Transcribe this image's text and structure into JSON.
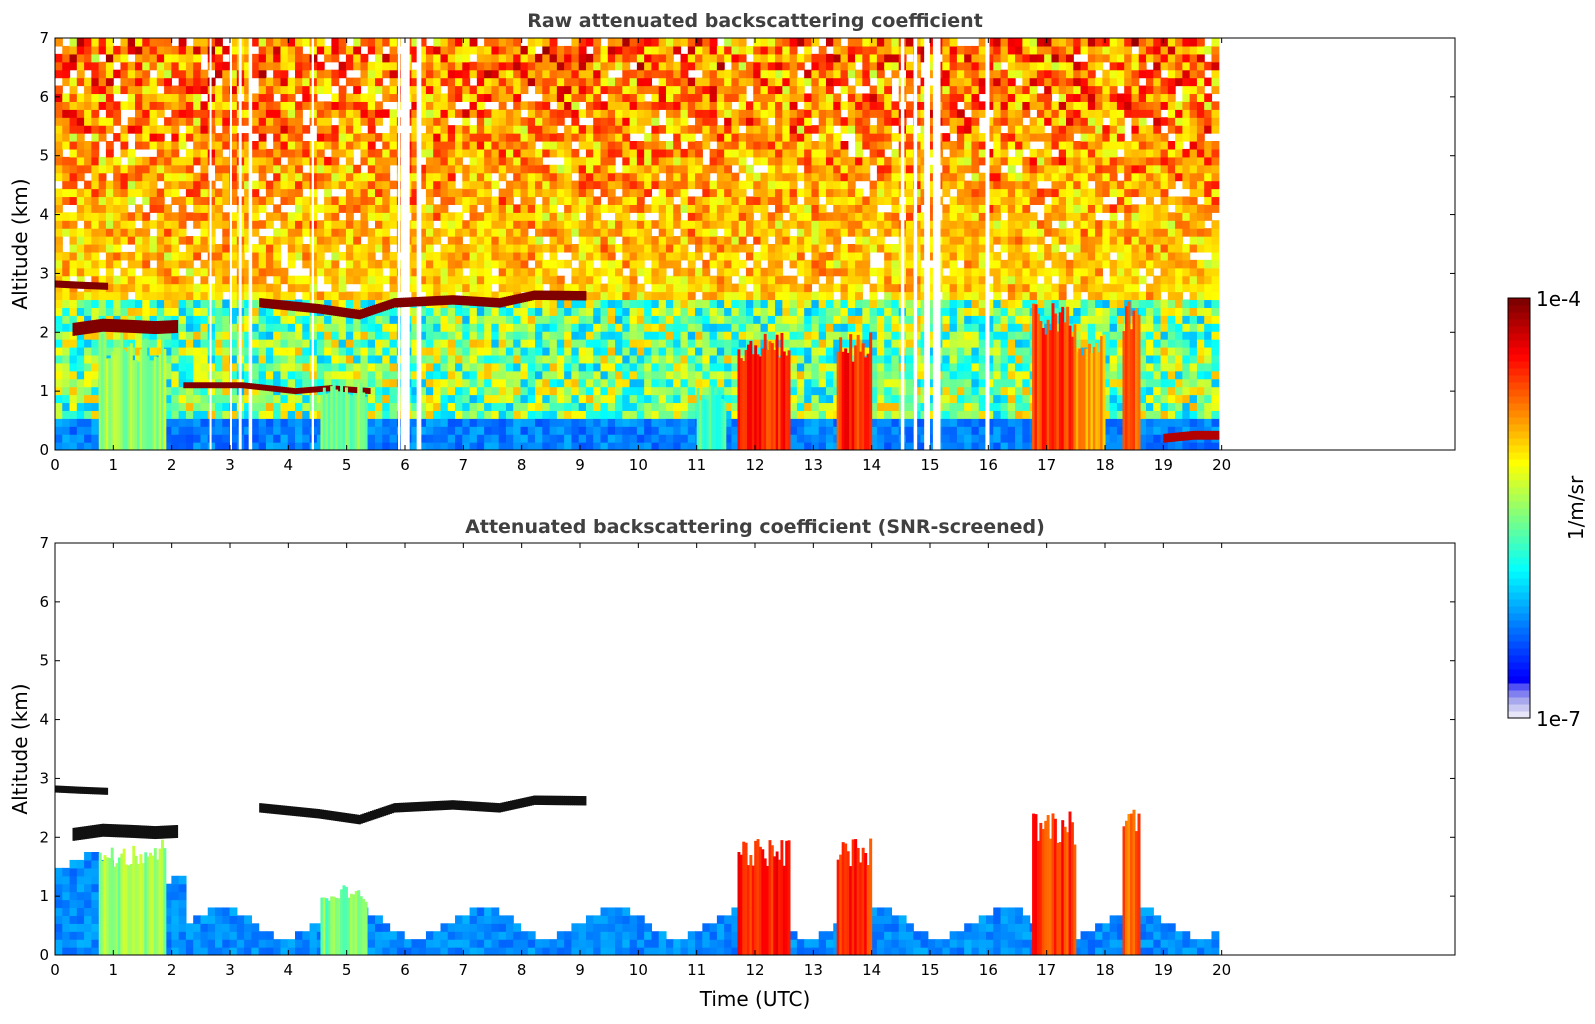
{
  "chart_data": [
    {
      "type": "heatmap",
      "title": "Raw attenuated backscattering coefficient",
      "xlabel": "",
      "ylabel": "Altitude (km)",
      "xlim": [
        0,
        24
      ],
      "ylim": [
        0,
        7
      ],
      "xticks": [
        "0",
        "1",
        "2",
        "3",
        "4",
        "5",
        "6",
        "7",
        "8",
        "9",
        "10",
        "11",
        "12",
        "13",
        "14",
        "15",
        "16",
        "17",
        "18",
        "19",
        "20"
      ],
      "yticks": [
        "0",
        "1",
        "2",
        "3",
        "4",
        "5",
        "6",
        "7"
      ],
      "data_end_time": 19.95,
      "noise_region": {
        "low_altitude_level": 0.2,
        "mid_altitude_level": 0.55,
        "upper_altitude_level": 0.8
      },
      "gaps": [
        [
          2.65,
          2.68
        ],
        [
          3.0,
          3.03
        ],
        [
          3.15,
          3.2
        ],
        [
          3.32,
          3.38
        ],
        [
          4.4,
          4.44
        ],
        [
          5.88,
          5.92
        ],
        [
          5.93,
          6.08
        ],
        [
          6.2,
          6.28
        ],
        [
          14.5,
          14.56
        ],
        [
          14.72,
          14.78
        ],
        [
          14.9,
          15.0
        ],
        [
          15.05,
          15.18
        ],
        [
          15.95,
          16.02
        ]
      ],
      "features": [
        {
          "kind": "layer",
          "level": 1.0,
          "points": [
            [
              0,
              2.82
            ],
            [
              0.4,
              2.8
            ],
            [
              0.9,
              2.78
            ]
          ],
          "thickness": 0.12
        },
        {
          "kind": "layer",
          "level": 1.0,
          "points": [
            [
              0.3,
              2.05
            ],
            [
              0.8,
              2.12
            ],
            [
              1.3,
              2.1
            ],
            [
              1.7,
              2.08
            ],
            [
              2.1,
              2.1
            ]
          ],
          "thickness": 0.22
        },
        {
          "kind": "layer",
          "level": 1.0,
          "points": [
            [
              3.5,
              2.5
            ],
            [
              4.5,
              2.4
            ],
            [
              5.2,
              2.3
            ],
            [
              5.8,
              2.5
            ],
            [
              6.8,
              2.55
            ],
            [
              7.6,
              2.5
            ],
            [
              8.2,
              2.63
            ],
            [
              9.1,
              2.62
            ]
          ],
          "thickness": 0.16
        },
        {
          "kind": "layer",
          "level": 1.0,
          "points": [
            [
              2.2,
              1.1
            ],
            [
              3.2,
              1.1
            ],
            [
              4.1,
              1.0
            ],
            [
              4.7,
              1.05
            ],
            [
              5.4,
              1.0
            ]
          ],
          "thickness": 0.1
        },
        {
          "kind": "column",
          "level": 0.58,
          "x": [
            0.75,
            1.9
          ],
          "alt": [
            0,
            2.0
          ]
        },
        {
          "kind": "column",
          "level": 0.55,
          "x": [
            4.55,
            5.35
          ],
          "alt": [
            0,
            1.2
          ]
        },
        {
          "kind": "column",
          "level": 0.5,
          "x": [
            11.0,
            11.5
          ],
          "alt": [
            0,
            1.1
          ]
        },
        {
          "kind": "column",
          "level": 0.9,
          "x": [
            11.7,
            12.6
          ],
          "alt": [
            0,
            2.0
          ]
        },
        {
          "kind": "column",
          "level": 0.9,
          "x": [
            13.4,
            14.0
          ],
          "alt": [
            0,
            2.0
          ]
        },
        {
          "kind": "column",
          "level": 0.88,
          "x": [
            16.75,
            17.5
          ],
          "alt": [
            0,
            2.5
          ]
        },
        {
          "kind": "column",
          "level": 0.78,
          "x": [
            17.5,
            18.0
          ],
          "alt": [
            0,
            2.0
          ]
        },
        {
          "kind": "column",
          "level": 0.85,
          "x": [
            18.3,
            18.6
          ],
          "alt": [
            0,
            2.6
          ]
        },
        {
          "kind": "layer",
          "level": 0.95,
          "points": [
            [
              19.0,
              0.2
            ],
            [
              19.5,
              0.25
            ],
            [
              19.95,
              0.25
            ]
          ],
          "thickness": 0.15
        }
      ]
    },
    {
      "type": "heatmap",
      "title": "Attenuated backscattering coefficient (SNR-screened)",
      "xlabel": "Time (UTC)",
      "ylabel": "Altitude (km)",
      "xlim": [
        0,
        24
      ],
      "ylim": [
        0,
        7
      ],
      "xticks": [
        "0",
        "1",
        "2",
        "3",
        "4",
        "5",
        "6",
        "7",
        "8",
        "9",
        "10",
        "11",
        "12",
        "13",
        "14",
        "15",
        "16",
        "17",
        "18",
        "19",
        "20"
      ],
      "yticks": [
        "0",
        "1",
        "2",
        "3",
        "4",
        "5",
        "6",
        "7"
      ],
      "data_end_time": 19.95,
      "screened": true,
      "features": [
        {
          "kind": "layer",
          "level": 1.0,
          "points": [
            [
              0,
              2.82
            ],
            [
              0.4,
              2.8
            ],
            [
              0.9,
              2.78
            ]
          ],
          "thickness": 0.12
        },
        {
          "kind": "layer",
          "level": 1.0,
          "points": [
            [
              0.3,
              2.05
            ],
            [
              0.8,
              2.12
            ],
            [
              1.3,
              2.1
            ],
            [
              1.7,
              2.08
            ],
            [
              2.1,
              2.1
            ]
          ],
          "thickness": 0.22
        },
        {
          "kind": "layer",
          "level": 1.0,
          "points": [
            [
              3.5,
              2.5
            ],
            [
              4.5,
              2.4
            ],
            [
              5.2,
              2.3
            ],
            [
              5.8,
              2.5
            ],
            [
              6.8,
              2.55
            ],
            [
              7.6,
              2.5
            ],
            [
              8.2,
              2.63
            ],
            [
              9.1,
              2.62
            ]
          ],
          "thickness": 0.16
        },
        {
          "kind": "column",
          "level": 0.58,
          "x": [
            0.75,
            1.9
          ],
          "alt": [
            0,
            2.0
          ]
        },
        {
          "kind": "column",
          "level": 0.55,
          "x": [
            4.55,
            5.35
          ],
          "alt": [
            0,
            1.2
          ]
        },
        {
          "kind": "column",
          "level": 0.9,
          "x": [
            11.7,
            12.6
          ],
          "alt": [
            0,
            2.0
          ]
        },
        {
          "kind": "column",
          "level": 0.9,
          "x": [
            13.4,
            14.0
          ],
          "alt": [
            0,
            2.0
          ]
        },
        {
          "kind": "column",
          "level": 0.88,
          "x": [
            16.75,
            17.5
          ],
          "alt": [
            0,
            2.5
          ]
        },
        {
          "kind": "column",
          "level": 0.85,
          "x": [
            18.3,
            18.6
          ],
          "alt": [
            0,
            2.6
          ]
        }
      ]
    }
  ],
  "colorbar": {
    "label": "1/m/sr",
    "top_label": "1e-4",
    "bottom_label": "1e-7",
    "colormap": "jet",
    "low_colors": [
      "#e6e6f8",
      "#c8c8f2",
      "#a8a8ee",
      "#8080f0",
      "#5050f5"
    ]
  },
  "colors": {
    "background": "#ffffff",
    "title": "#404040",
    "axis": "#000000"
  }
}
